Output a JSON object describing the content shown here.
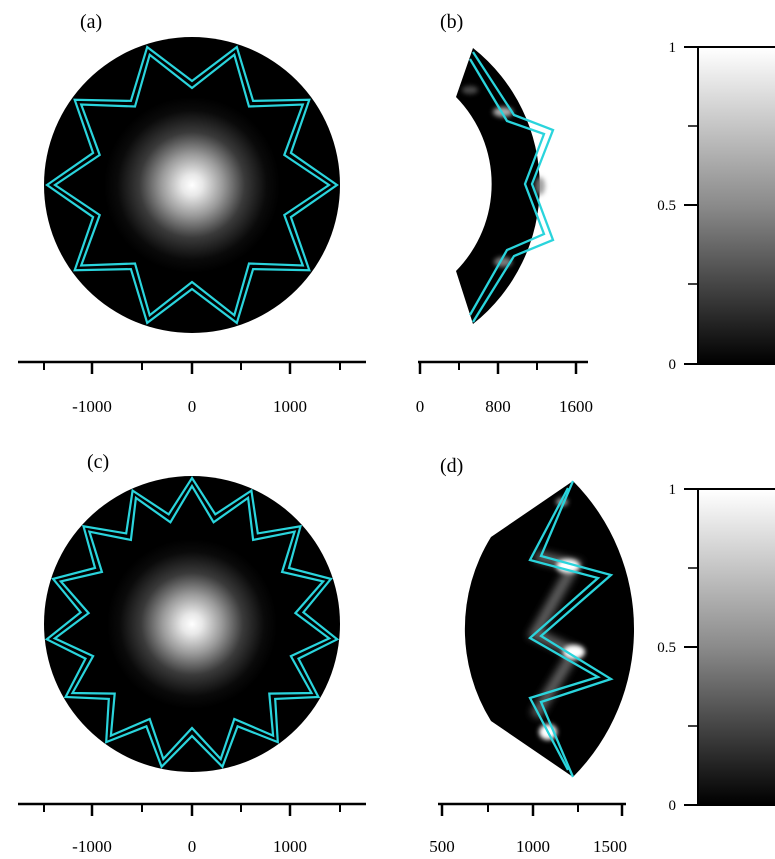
{
  "figure": {
    "panels": [
      {
        "id": "a",
        "label": "(a)",
        "x_ticks": [
          "-1000",
          "0",
          "1000"
        ]
      },
      {
        "id": "b",
        "label": "(b)",
        "x_ticks": [
          "0",
          "800",
          "1600"
        ]
      },
      {
        "id": "c",
        "label": "(c)",
        "x_ticks": [
          "-1000",
          "0",
          "1000"
        ]
      },
      {
        "id": "d",
        "label": "(d)",
        "x_ticks": [
          "500",
          "1000",
          "1500"
        ]
      }
    ],
    "colorbars": [
      {
        "ticks": [
          "1",
          "0.5",
          "0"
        ],
        "range": [
          0,
          1
        ]
      },
      {
        "ticks": [
          "1",
          "0.5",
          "0"
        ],
        "range": [
          0,
          1
        ]
      }
    ],
    "overlay_color": "#2ad4dc",
    "colormap": [
      "#000000",
      "#ffffff"
    ]
  },
  "chart_data": [
    {
      "type": "heatmap",
      "panel": "(a)",
      "x_ticks": [
        -1000,
        0,
        1000
      ],
      "star_points": 10
    },
    {
      "type": "heatmap",
      "panel": "(b)",
      "x_ticks": [
        0,
        800,
        1600
      ]
    },
    {
      "type": "heatmap",
      "panel": "(c)",
      "x_ticks": [
        -1000,
        0,
        1000
      ],
      "star_points": 15
    },
    {
      "type": "heatmap",
      "panel": "(d)",
      "x_ticks": [
        500,
        1000,
        1500
      ]
    },
    {
      "type": "heatmap",
      "panel": "colorbar-top",
      "ticks": [
        0,
        0.5,
        1
      ],
      "range": [
        0,
        1
      ]
    },
    {
      "type": "heatmap",
      "panel": "colorbar-bottom",
      "ticks": [
        0,
        0.5,
        1
      ],
      "range": [
        0,
        1
      ]
    }
  ]
}
